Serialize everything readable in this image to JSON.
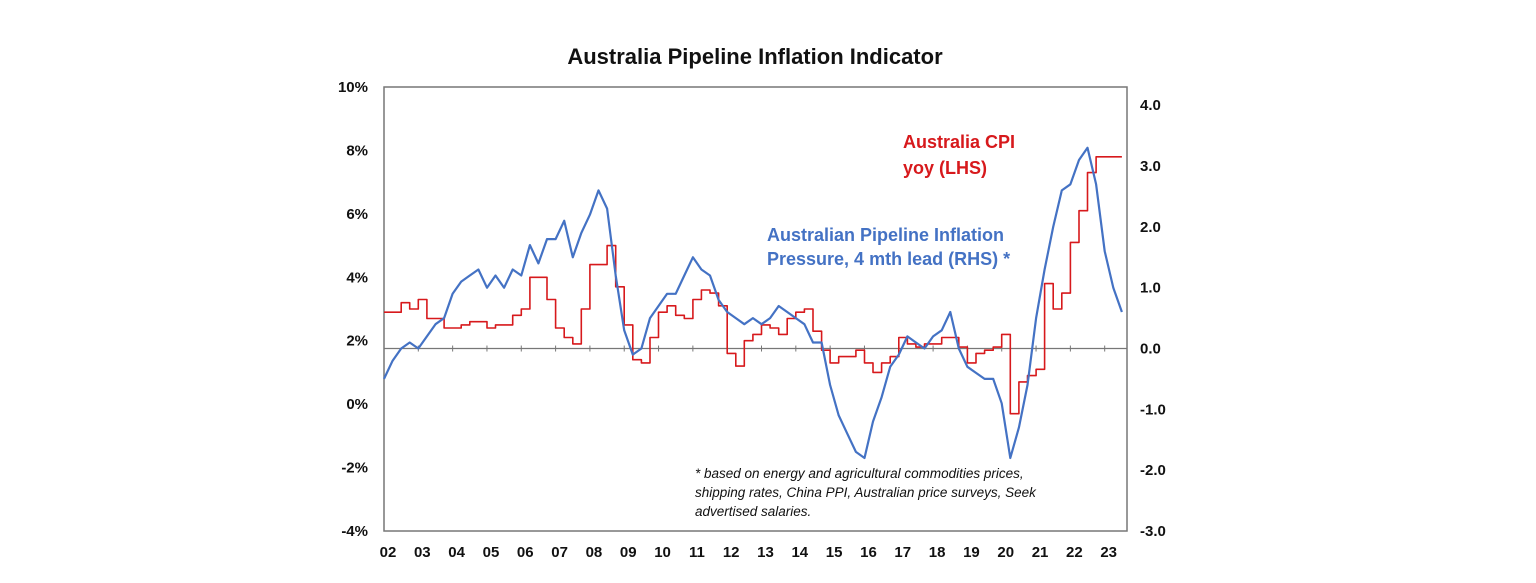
{
  "chart_data": {
    "type": "line",
    "title": "Australia Pipeline Inflation Indicator",
    "x_ticks": [
      "02",
      "03",
      "04",
      "05",
      "06",
      "07",
      "08",
      "09",
      "10",
      "11",
      "12",
      "13",
      "14",
      "15",
      "16",
      "17",
      "18",
      "19",
      "20",
      "21",
      "22",
      "23"
    ],
    "x_range": [
      2002.0,
      2023.65
    ],
    "y_left": {
      "range": [
        -4,
        10
      ],
      "ticks": [
        "-4%",
        "-2%",
        "0%",
        "2%",
        "4%",
        "6%",
        "8%",
        "10%"
      ],
      "tick_values": [
        -4,
        -2,
        0,
        2,
        4,
        6,
        8,
        10
      ]
    },
    "y_right": {
      "range": [
        -3.0,
        4.3
      ],
      "ticks": [
        "-3.0",
        "-2.0",
        "-1.0",
        "0.0",
        "1.0",
        "2.0",
        "3.0",
        "4.0"
      ],
      "tick_values": [
        -3,
        -2,
        -1,
        0,
        1,
        2,
        3,
        4
      ]
    },
    "zero_line_right": 0.0,
    "annotations": {
      "cpi_label": [
        "Australia CPI",
        "yoy (LHS)"
      ],
      "pipeline_label": [
        "Australian Pipeline Inflation",
        "Pressure, 4 mth lead (RHS) *"
      ],
      "footnote": [
        "* based on energy and agricultural commodities prices,",
        "shipping rates, China PPI, Australian price surveys, Seek",
        "advertised salaries."
      ]
    },
    "series": [
      {
        "name": "Australia CPI yoy (LHS)",
        "axis": "left",
        "color": "#d7191c",
        "step": true,
        "x": [
          2002.0,
          2002.25,
          2002.5,
          2002.75,
          2003.0,
          2003.25,
          2003.5,
          2003.75,
          2004.0,
          2004.25,
          2004.5,
          2004.75,
          2005.0,
          2005.25,
          2005.5,
          2005.75,
          2006.0,
          2006.25,
          2006.5,
          2006.75,
          2007.0,
          2007.25,
          2007.5,
          2007.75,
          2008.0,
          2008.25,
          2008.5,
          2008.75,
          2009.0,
          2009.25,
          2009.5,
          2009.75,
          2010.0,
          2010.25,
          2010.5,
          2010.75,
          2011.0,
          2011.25,
          2011.5,
          2011.75,
          2012.0,
          2012.25,
          2012.5,
          2012.75,
          2013.0,
          2013.25,
          2013.5,
          2013.75,
          2014.0,
          2014.25,
          2014.5,
          2014.75,
          2015.0,
          2015.25,
          2015.5,
          2015.75,
          2016.0,
          2016.25,
          2016.5,
          2016.75,
          2017.0,
          2017.25,
          2017.5,
          2017.75,
          2018.0,
          2018.25,
          2018.5,
          2018.75,
          2019.0,
          2019.25,
          2019.5,
          2019.75,
          2020.0,
          2020.25,
          2020.5,
          2020.75,
          2021.0,
          2021.25,
          2021.5,
          2021.75,
          2022.0,
          2022.25,
          2022.5,
          2022.75,
          2023.0,
          2023.25
        ],
        "values": [
          2.9,
          2.9,
          3.2,
          3.0,
          3.3,
          2.7,
          2.7,
          2.4,
          2.4,
          2.5,
          2.6,
          2.6,
          2.4,
          2.5,
          2.5,
          2.8,
          3.0,
          4.0,
          4.0,
          3.3,
          2.4,
          2.1,
          1.9,
          3.0,
          4.4,
          4.4,
          5.0,
          3.7,
          2.5,
          1.4,
          1.3,
          2.1,
          2.9,
          3.1,
          2.8,
          2.7,
          3.3,
          3.6,
          3.5,
          3.1,
          1.6,
          1.2,
          2.0,
          2.2,
          2.5,
          2.4,
          2.2,
          2.7,
          2.9,
          3.0,
          2.3,
          1.7,
          1.3,
          1.5,
          1.5,
          1.7,
          1.3,
          1.0,
          1.3,
          1.5,
          2.1,
          1.9,
          1.8,
          1.9,
          1.9,
          2.1,
          2.1,
          1.8,
          1.3,
          1.6,
          1.7,
          1.8,
          2.2,
          -0.3,
          0.7,
          0.9,
          1.1,
          3.8,
          3.0,
          3.5,
          5.1,
          6.1,
          7.3,
          7.8,
          7.8,
          7.8
        ]
      },
      {
        "name": "Australian Pipeline Inflation Pressure, 4 mth lead (RHS)",
        "axis": "right",
        "color": "#4472c4",
        "step": false,
        "x": [
          2002.0,
          2002.25,
          2002.5,
          2002.75,
          2003.0,
          2003.25,
          2003.5,
          2003.75,
          2004.0,
          2004.25,
          2004.5,
          2004.75,
          2005.0,
          2005.25,
          2005.5,
          2005.75,
          2006.0,
          2006.25,
          2006.5,
          2006.75,
          2007.0,
          2007.25,
          2007.5,
          2007.75,
          2008.0,
          2008.25,
          2008.5,
          2008.75,
          2009.0,
          2009.25,
          2009.5,
          2009.75,
          2010.0,
          2010.25,
          2010.5,
          2010.75,
          2011.0,
          2011.25,
          2011.5,
          2011.75,
          2012.0,
          2012.25,
          2012.5,
          2012.75,
          2013.0,
          2013.25,
          2013.5,
          2013.75,
          2014.0,
          2014.25,
          2014.5,
          2014.75,
          2015.0,
          2015.25,
          2015.5,
          2015.75,
          2016.0,
          2016.25,
          2016.5,
          2016.75,
          2017.0,
          2017.25,
          2017.5,
          2017.75,
          2018.0,
          2018.25,
          2018.5,
          2018.75,
          2019.0,
          2019.25,
          2019.5,
          2019.75,
          2020.0,
          2020.25,
          2020.5,
          2020.75,
          2021.0,
          2021.25,
          2021.5,
          2021.75,
          2022.0,
          2022.25,
          2022.5,
          2022.75,
          2023.0,
          2023.25,
          2023.5
        ],
        "values": [
          -0.5,
          -0.2,
          0.0,
          0.1,
          0.0,
          0.2,
          0.4,
          0.5,
          0.9,
          1.1,
          1.2,
          1.3,
          1.0,
          1.2,
          1.0,
          1.3,
          1.2,
          1.7,
          1.4,
          1.8,
          1.8,
          2.1,
          1.5,
          1.9,
          2.2,
          2.6,
          2.3,
          1.2,
          0.3,
          -0.1,
          0.0,
          0.5,
          0.7,
          0.9,
          0.9,
          1.2,
          1.5,
          1.3,
          1.2,
          0.8,
          0.6,
          0.5,
          0.4,
          0.5,
          0.4,
          0.5,
          0.7,
          0.6,
          0.5,
          0.4,
          0.1,
          0.1,
          -0.6,
          -1.1,
          -1.4,
          -1.7,
          -1.8,
          -1.2,
          -0.8,
          -0.3,
          -0.1,
          0.2,
          0.1,
          0.0,
          0.2,
          0.3,
          0.6,
          0.0,
          -0.3,
          -0.4,
          -0.5,
          -0.5,
          -0.9,
          -1.8,
          -1.3,
          -0.6,
          0.5,
          1.3,
          2.0,
          2.6,
          2.7,
          3.1,
          3.3,
          2.7,
          1.6,
          1.0,
          0.6
        ]
      }
    ]
  }
}
